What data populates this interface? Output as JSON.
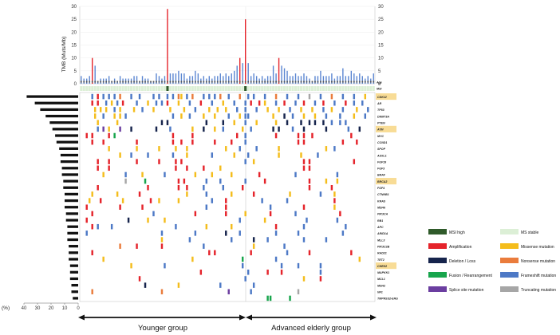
{
  "chart_data": {
    "type": "oncoprint",
    "tmb_axis": {
      "label": "TMB (Muts/Mb)",
      "ticks": [
        0,
        5,
        10,
        15,
        20,
        25,
        30
      ],
      "ylim": [
        0,
        30
      ]
    },
    "row_labels": {
      "msi": "MSI",
      "age": "Age"
    },
    "freq_axis": {
      "label": "(%)",
      "ticks": [
        40,
        30,
        20,
        10,
        0
      ],
      "xlim": [
        0,
        40
      ]
    },
    "groups": [
      {
        "label": "Younger group",
        "n_samples": 59
      },
      {
        "label": "Advanced elderly group",
        "n_samples": 47
      }
    ],
    "genes": [
      "CDK12",
      "AR",
      "TP53",
      "DNMT3A",
      "PTEN",
      "ATM",
      "MYC",
      "CCND1",
      "SPOP",
      "ASXL1",
      "FGF19",
      "FGF3",
      "BRAF",
      "BRCA2",
      "FGF4",
      "CTNNB1",
      "KRAS",
      "MSH6",
      "PIK3CA",
      "RB1",
      "APC",
      "ARID1A",
      "MLL3",
      "PIK3C2B",
      "RAD21",
      "TET2",
      "CHEK2",
      "MAPKK1",
      "MCL1",
      "MSH2",
      "NF1",
      "TMPRSS2-ERG"
    ],
    "highlighted_genes": [
      "CDK12",
      "ATM",
      "BRCA2",
      "CHEK2"
    ],
    "gene_frequency_pct": [
      38,
      32,
      28,
      24,
      21,
      19,
      17,
      16,
      14,
      13,
      13,
      12,
      12,
      11,
      11,
      10,
      10,
      10,
      9,
      9,
      8,
      8,
      8,
      7,
      7,
      7,
      6,
      6,
      6,
      5,
      5,
      4
    ],
    "legend": [
      {
        "label": "MSI high",
        "color": "#2f5a2a"
      },
      {
        "label": "MS stable",
        "color": "#dcefd6"
      },
      {
        "label": "Amplification",
        "color": "#e5242b"
      },
      {
        "label": "Missense mutation",
        "color": "#f4bd1c"
      },
      {
        "label": "Deletion / Loss",
        "color": "#16244c"
      },
      {
        "label": "Nonsense mutation",
        "color": "#ea7c3c"
      },
      {
        "label": "Fusion / Rearrangement",
        "color": "#17a54c"
      },
      {
        "label": "Frameshift mutation",
        "color": "#4d79c6"
      },
      {
        "label": "Splice site mutation",
        "color": "#6b3ea0"
      },
      {
        "label": "Truncating mutation",
        "color": "#a6a6a6"
      }
    ],
    "tmb_values": [
      3,
      2,
      2,
      3,
      10,
      7,
      1,
      2,
      2,
      2,
      3,
      1,
      2,
      1,
      3,
      2,
      2,
      2,
      2,
      3,
      3,
      1,
      3,
      2,
      2,
      1,
      1,
      4,
      3,
      2,
      3,
      29,
      4,
      4,
      4,
      5,
      4,
      4,
      2,
      3,
      3,
      5,
      4,
      2,
      3,
      2,
      3,
      2,
      3,
      3,
      4,
      3,
      4,
      3,
      4,
      5,
      7,
      10,
      8,
      25,
      8,
      3,
      4,
      3,
      2,
      3,
      2,
      3,
      3,
      7,
      4,
      10,
      7,
      6,
      5,
      3,
      3,
      4,
      3,
      3,
      4,
      3,
      2,
      1,
      3,
      3,
      5,
      3,
      3,
      3,
      4,
      2,
      3,
      3,
      6,
      3,
      3,
      5,
      4,
      3,
      4,
      3,
      2,
      3,
      2,
      4
    ],
    "msi_high_samples": [
      31,
      59
    ],
    "alteration_legend_codes": {
      "A": "Amplification",
      "M": "Missense mutation",
      "D": "Deletion / Loss",
      "N": "Nonsense mutation",
      "G": "Fusion / Rearrangement",
      "F": "Frameshift mutation",
      "S": "Splice site mutation",
      "T": "Truncating mutation"
    },
    "alterations": {
      "CDK12": "4F 6A 8F 10F 12F 14N 18F 21F 26F 28F 31F 33F 35N 36M 38F 40N 44F 46F 48F 50N 53F 57N 60F 62F 66F 70N 74F 78F 82T 86F 90N 94F 98F 102M",
      "AR": "4A 6A 9F 11M 13F 15A 20F 24M 27F 29F 31A 35M 39F 43A 47F 51M 55F 59F 61A 64A 66M 70F 73A 77F 80A 84F 87A 91F 95A 98F 101F",
      "TP53": "5M 7M 9M 12F 14M 19M 22F 26M 32M 37M 41F 46M 49M 52M 56F 59F 63F 67M 71M 75F 79M 83M 87F 90M 94F 99M 103F",
      "DNMT3A": "5M 8F 12M 14M 16F 33F 36M 39F 44M 48M 53F 57M 59F 60F 69M 73D 76F 80M 84M 88F 93F 98M 102F",
      "PTEN": "6M 13M 29D 31D 45D 51D 55M 59F 63M 70M 74D 79D 82D 84D 87D 90F 93F 95F",
      "ATM": "6F 8S 10M 14S 18D 27D 32F 40M 44D 48M 51F 58M 61F 69D 71D 76F 80D 88D 96F 100D",
      "MYC": "2A 4A 10A 12G 33A 40A 56A 59F 70A 78A 80A 83A 97A",
      "CCND1": "4A 8A 20A 33A 36A 40A 48A 54A 59F 78A 80A 94A 99A",
      "SPOP": "10M 20M 28M 34M 38M 52M 57F 63F 71M 88M 91F",
      "ASXL1": "14M 18F 24F 33F 38M 47F 55M 60F 71M 79M 85F",
      "FGF19": "6A 10A 20A 28A 34A 36A 59F 62M 80A 82A 98A",
      "FGF3": "6A 10A 34A 38A 44A 50M 80A 82A",
      "BRAF": "8M 16F 22M 30F 41M 47M 54M 64A 77F 92F",
      "BRCA2": "16T 23G 35A 37A 45F 50F 59F 66A 82A 88M 92M",
      "FGF4": "6A 24A 35A 38A 44F 51F 58A 82A 90A",
      "CTNNB1": "4M 13M 21A 38M 45F 54M 62A 75M 86F 91M",
      "KRAS": "3M 7A 15M 25A 28M 35M 47F 52A 65F 74F 91A",
      "MSH6": "2A 14A 22A 45F 52A 68F 80A 91M",
      "PIK3CA": "4A 26F 41A 52A 59M 68A 77F 93A",
      "RB1": "2A 17D 24M 30M 57F 66M 81F 92F",
      "APC": "4A 6F 11F 34F 45M 54M 70A 80F 95F",
      "ARID1A": "2F 29F 41F 52D 57F 70F 78F 94F",
      "MLL3": "29M 39F 54F 62D 67F 80F 88F",
      "PIK3C2B": "14N 20A 29A 44F 62M 73F",
      "RAD21": "4A 46A 48A 61A 74F 82A 97A",
      "TET2": "8M 40M 58G 70F 100M",
      "CHEK2": "18M 30F 58F 72F 78F 86F",
      "MAPKK1": "43A 60F 67A 72A 86F",
      "MCL1": "21A 59F 80M 86A",
      "MSH2": "23D 35M 50F 62F",
      "NF1": "4N 29N 53S 61F 78T",
      "TMPRSS2-ERG": "67G 68G 75G"
    }
  }
}
